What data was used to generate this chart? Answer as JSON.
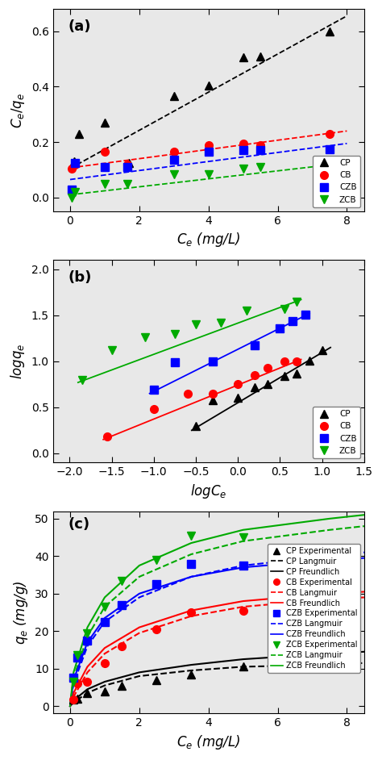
{
  "panel_a": {
    "title": "(a)",
    "xlabel": "$C_e$ (mg/L)",
    "ylabel": "$C_e/q_e$",
    "xlim": [
      -0.5,
      8.5
    ],
    "ylim": [
      -0.05,
      0.68
    ],
    "xticks": [
      0,
      2,
      4,
      6,
      8
    ],
    "yticks": [
      0.0,
      0.2,
      0.4,
      0.6
    ],
    "CP": {
      "x": [
        0.12,
        0.25,
        1.0,
        1.7,
        3.0,
        4.0,
        5.0,
        5.5,
        7.5
      ],
      "y": [
        0.13,
        0.23,
        0.27,
        0.125,
        0.365,
        0.405,
        0.505,
        0.51,
        0.6
      ],
      "color": "#000000",
      "marker": "^",
      "line_x": [
        0.0,
        8.0
      ],
      "line_y": [
        0.105,
        0.655
      ]
    },
    "CB": {
      "x": [
        0.05,
        0.15,
        1.0,
        1.65,
        3.0,
        4.0,
        5.0,
        5.5,
        7.5
      ],
      "y": [
        0.105,
        0.12,
        0.165,
        0.12,
        0.165,
        0.19,
        0.195,
        0.19,
        0.23
      ],
      "color": "#ff0000",
      "marker": "o",
      "line_x": [
        0.0,
        8.0
      ],
      "line_y": [
        0.107,
        0.24
      ]
    },
    "CZB": {
      "x": [
        0.05,
        0.15,
        1.0,
        1.65,
        3.0,
        4.0,
        5.0,
        5.5,
        7.5
      ],
      "y": [
        0.03,
        0.125,
        0.11,
        0.11,
        0.135,
        0.165,
        0.17,
        0.17,
        0.175
      ],
      "color": "#0000ff",
      "marker": "s",
      "line_x": [
        0.0,
        8.0
      ],
      "line_y": [
        0.065,
        0.195
      ]
    },
    "ZCB": {
      "x": [
        0.05,
        0.15,
        1.0,
        1.65,
        3.0,
        4.0,
        5.0,
        5.5,
        7.5
      ],
      "y": [
        0.0,
        0.02,
        0.05,
        0.05,
        0.085,
        0.085,
        0.105,
        0.11,
        0.115
      ],
      "color": "#00aa00",
      "marker": "v",
      "line_x": [
        0.0,
        8.0
      ],
      "line_y": [
        0.01,
        0.125
      ]
    }
  },
  "panel_b": {
    "title": "(b)",
    "xlabel": "$logC_e$",
    "ylabel": "$logq_e$",
    "xlim": [
      -2.2,
      1.5
    ],
    "ylim": [
      -0.1,
      2.1
    ],
    "xticks": [
      -2.0,
      -1.5,
      -1.0,
      -0.5,
      0.0,
      0.5,
      1.0,
      1.5
    ],
    "yticks": [
      0.0,
      0.5,
      1.0,
      1.5,
      2.0
    ],
    "CP": {
      "x": [
        -0.5,
        -0.3,
        0.0,
        0.2,
        0.35,
        0.55,
        0.7,
        0.85,
        1.0
      ],
      "y": [
        0.3,
        0.58,
        0.6,
        0.72,
        0.75,
        0.84,
        0.87,
        1.01,
        1.12
      ],
      "color": "#000000",
      "marker": "^",
      "line_x": [
        -0.55,
        1.1
      ],
      "line_y": [
        0.25,
        1.15
      ]
    },
    "CB": {
      "x": [
        -1.55,
        -1.0,
        -0.6,
        -0.3,
        0.0,
        0.2,
        0.35,
        0.55,
        0.7
      ],
      "y": [
        0.18,
        0.48,
        0.65,
        0.65,
        0.75,
        0.85,
        0.93,
        1.0,
        1.0
      ],
      "color": "#ff0000",
      "marker": "o",
      "line_x": [
        -1.6,
        0.75
      ],
      "line_y": [
        0.15,
        1.02
      ]
    },
    "CZB": {
      "x": [
        -1.0,
        -0.75,
        -0.3,
        0.2,
        0.5,
        0.65,
        0.8
      ],
      "y": [
        0.69,
        0.99,
        1.0,
        1.17,
        1.36,
        1.44,
        1.51
      ],
      "color": "#0000ff",
      "marker": "s",
      "line_x": [
        -1.05,
        0.85
      ],
      "line_y": [
        0.65,
        1.52
      ]
    },
    "ZCB": {
      "x": [
        -1.85,
        -1.5,
        -1.1,
        -0.75,
        -0.5,
        -0.2,
        0.1,
        0.55,
        0.7
      ],
      "y": [
        0.8,
        1.12,
        1.26,
        1.3,
        1.4,
        1.42,
        1.55,
        1.57,
        1.65
      ],
      "color": "#00aa00",
      "marker": "v",
      "line_x": [
        -1.9,
        0.75
      ],
      "line_y": [
        0.77,
        1.67
      ]
    }
  },
  "panel_c": {
    "title": "(c)",
    "xlabel": "$C_e$ (mg/L)",
    "ylabel": "$q_e$ (mg/g)",
    "xlim": [
      -0.5,
      8.5
    ],
    "ylim": [
      -2,
      52
    ],
    "xticks": [
      0,
      2,
      4,
      6,
      8
    ],
    "yticks": [
      0,
      10,
      20,
      30,
      40,
      50
    ],
    "CP_exp": {
      "x": [
        0.1,
        0.2,
        0.5,
        1.0,
        1.5,
        2.5,
        3.5,
        5.0,
        7.5
      ],
      "y": [
        1.8,
        2.0,
        3.5,
        4.0,
        5.5,
        7.0,
        8.5,
        10.5,
        13.0
      ],
      "color": "#000000",
      "marker": "^"
    },
    "CP_langmuir": {
      "x": [
        0.0,
        0.1,
        0.5,
        1.0,
        2.0,
        3.5,
        5.0,
        7.5,
        8.5
      ],
      "y": [
        0.0,
        1.0,
        3.5,
        5.5,
        8.0,
        9.5,
        10.5,
        11.0,
        11.5
      ],
      "color": "#000000",
      "style": "dashed"
    },
    "CP_freundlich": {
      "x": [
        0.0,
        0.1,
        0.5,
        1.0,
        2.0,
        3.5,
        5.0,
        7.5,
        8.5
      ],
      "y": [
        0.0,
        1.5,
        4.5,
        6.5,
        9.0,
        11.0,
        12.5,
        14.0,
        14.5
      ],
      "color": "#000000",
      "style": "solid"
    },
    "CB_exp": {
      "x": [
        0.1,
        0.2,
        0.5,
        1.0,
        1.5,
        2.5,
        3.5,
        5.0,
        7.5
      ],
      "y": [
        1.8,
        6.0,
        6.5,
        11.5,
        16.0,
        20.5,
        25.0,
        25.5,
        29.5
      ],
      "color": "#ff0000",
      "marker": "o"
    },
    "CB_langmuir": {
      "x": [
        0.0,
        0.1,
        0.5,
        1.0,
        2.0,
        3.5,
        5.0,
        7.5,
        8.5
      ],
      "y": [
        0.0,
        2.5,
        9.0,
        14.0,
        19.5,
        24.0,
        26.5,
        28.5,
        29.0
      ],
      "color": "#ff0000",
      "style": "dashed"
    },
    "CB_freundlich": {
      "x": [
        0.0,
        0.1,
        0.5,
        1.0,
        2.0,
        3.5,
        5.0,
        7.5,
        8.5
      ],
      "y": [
        0.0,
        3.5,
        10.5,
        15.5,
        21.0,
        25.5,
        28.0,
        30.0,
        30.5
      ],
      "color": "#ff0000",
      "style": "solid"
    },
    "CZB_exp": {
      "x": [
        0.1,
        0.2,
        0.5,
        1.0,
        1.5,
        2.5,
        3.5,
        5.0
      ],
      "y": [
        7.5,
        13.0,
        17.5,
        22.5,
        27.0,
        32.5,
        38.0,
        37.5
      ],
      "color": "#0000ff",
      "marker": "s"
    },
    "CZB_langmuir": {
      "x": [
        0.0,
        0.1,
        0.5,
        1.0,
        2.0,
        3.5,
        5.0,
        7.5,
        8.5
      ],
      "y": [
        0.0,
        6.0,
        16.0,
        22.5,
        29.0,
        34.5,
        37.5,
        40.0,
        41.0
      ],
      "color": "#0000ff",
      "style": "dashed"
    },
    "CZB_freundlich": {
      "x": [
        0.0,
        0.1,
        0.5,
        1.0,
        2.0,
        3.5,
        5.0,
        7.5,
        8.5
      ],
      "y": [
        0.0,
        7.0,
        17.0,
        23.5,
        30.0,
        34.5,
        37.0,
        39.0,
        39.5
      ],
      "color": "#0000ff",
      "style": "solid"
    },
    "ZCB_exp": {
      "x": [
        0.1,
        0.2,
        0.5,
        1.0,
        1.5,
        2.5,
        3.5,
        5.0
      ],
      "y": [
        6.5,
        13.5,
        19.5,
        26.5,
        33.5,
        39.0,
        45.5,
        45.0
      ],
      "color": "#00aa00",
      "marker": "v"
    },
    "ZCB_langmuir": {
      "x": [
        0.0,
        0.1,
        0.5,
        1.0,
        2.0,
        3.5,
        5.0,
        7.5,
        8.5
      ],
      "y": [
        0.0,
        7.5,
        18.5,
        26.5,
        34.5,
        40.5,
        44.0,
        47.0,
        48.0
      ],
      "color": "#00aa00",
      "style": "dashed"
    },
    "ZCB_freundlich": {
      "x": [
        0.0,
        0.1,
        0.5,
        1.0,
        2.0,
        3.5,
        5.0,
        7.5,
        8.5
      ],
      "y": [
        0.0,
        9.0,
        21.0,
        29.0,
        37.5,
        43.5,
        47.0,
        50.0,
        51.0
      ],
      "color": "#00aa00",
      "style": "solid"
    }
  },
  "bg_color": "#e8e8e8",
  "legend_fontsize": 7.5,
  "axis_label_fontsize": 12,
  "tick_fontsize": 10
}
